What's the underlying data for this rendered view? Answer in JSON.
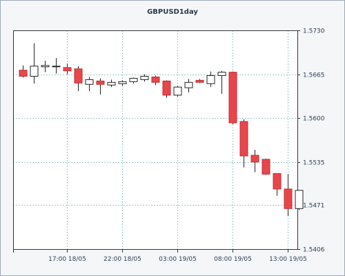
{
  "chart_data": {
    "type": "candlestick",
    "title": "GBPUSD1day",
    "y_ticks": [
      "1.5730",
      "1.5665",
      "1.5600",
      "1.5535",
      "1.5471",
      "1.5406"
    ],
    "x_ticks": [
      "17:00 18/05",
      "22:00 18/05",
      "03:00 19/05",
      "08:00 19/05",
      "13:00 19/05"
    ],
    "ylim": [
      1.5406,
      1.573
    ],
    "colors": {
      "bull_fill": "#ffffff",
      "bear_fill": "#e8464a",
      "outline": "#222222",
      "grid": "#9fc7c7"
    },
    "candles": [
      {
        "o": 1.5671,
        "h": 1.5678,
        "l": 1.566,
        "c": 1.5662
      },
      {
        "o": 1.5662,
        "h": 1.5711,
        "l": 1.5651,
        "c": 1.5677
      },
      {
        "o": 1.5676,
        "h": 1.5685,
        "l": 1.5668,
        "c": 1.5678
      },
      {
        "o": 1.5677,
        "h": 1.5689,
        "l": 1.5666,
        "c": 1.5677
      },
      {
        "o": 1.5675,
        "h": 1.5681,
        "l": 1.5665,
        "c": 1.567
      },
      {
        "o": 1.5673,
        "h": 1.5677,
        "l": 1.564,
        "c": 1.5652
      },
      {
        "o": 1.565,
        "h": 1.5661,
        "l": 1.564,
        "c": 1.5657
      },
      {
        "o": 1.5655,
        "h": 1.5659,
        "l": 1.5635,
        "c": 1.565
      },
      {
        "o": 1.5649,
        "h": 1.5657,
        "l": 1.5646,
        "c": 1.5653
      },
      {
        "o": 1.5651,
        "h": 1.5656,
        "l": 1.5648,
        "c": 1.5654
      },
      {
        "o": 1.5654,
        "h": 1.566,
        "l": 1.5651,
        "c": 1.5659
      },
      {
        "o": 1.5657,
        "h": 1.5665,
        "l": 1.5654,
        "c": 1.5662
      },
      {
        "o": 1.5661,
        "h": 1.5663,
        "l": 1.5649,
        "c": 1.5653
      },
      {
        "o": 1.5655,
        "h": 1.5656,
        "l": 1.563,
        "c": 1.5634
      },
      {
        "o": 1.5634,
        "h": 1.5648,
        "l": 1.5632,
        "c": 1.5646
      },
      {
        "o": 1.5645,
        "h": 1.5658,
        "l": 1.5638,
        "c": 1.5653
      },
      {
        "o": 1.5656,
        "h": 1.5658,
        "l": 1.5652,
        "c": 1.5653
      },
      {
        "o": 1.5651,
        "h": 1.5669,
        "l": 1.5646,
        "c": 1.5663
      },
      {
        "o": 1.5663,
        "h": 1.567,
        "l": 1.5636,
        "c": 1.5668
      },
      {
        "o": 1.5668,
        "h": 1.5669,
        "l": 1.5591,
        "c": 1.5593
      },
      {
        "o": 1.5595,
        "h": 1.5598,
        "l": 1.5527,
        "c": 1.5544
      },
      {
        "o": 1.5545,
        "h": 1.5553,
        "l": 1.552,
        "c": 1.5535
      },
      {
        "o": 1.5539,
        "h": 1.554,
        "l": 1.5516,
        "c": 1.5517
      },
      {
        "o": 1.5518,
        "h": 1.5518,
        "l": 1.5485,
        "c": 1.5495
      },
      {
        "o": 1.5495,
        "h": 1.5517,
        "l": 1.5455,
        "c": 1.5466
      },
      {
        "o": 1.5466,
        "h": 1.5493,
        "l": 1.5464,
        "c": 1.5493
      }
    ]
  }
}
